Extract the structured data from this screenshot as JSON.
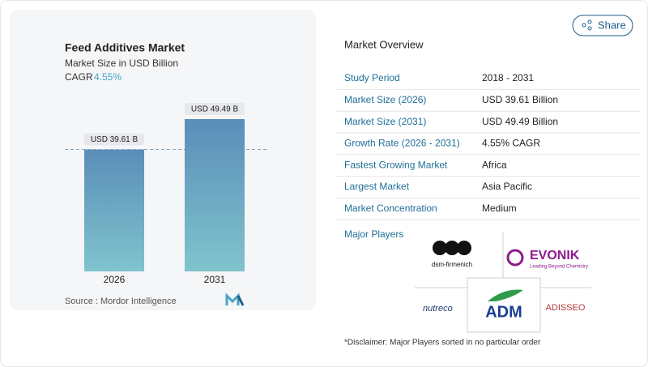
{
  "chart_data": {
    "type": "bar",
    "title": "Feed Additives Market",
    "subtitle": "Market Size in USD Billion",
    "cagr_label": "CAGR",
    "cagr_value": "4.55%",
    "categories": [
      "2026",
      "2031"
    ],
    "values": [
      39.61,
      49.49
    ],
    "value_labels": [
      "USD 39.61 B",
      "USD 49.49 B"
    ],
    "source": "Source : Mordor Intelligence"
  },
  "share": "Share",
  "overview": {
    "title": "Market Overview",
    "rows": [
      [
        "Study Period",
        "2018 - 2031"
      ],
      [
        "Market Size (2026)",
        "USD 39.61 Billion"
      ],
      [
        "Market Size (2031)",
        "USD 49.49 Billion"
      ],
      [
        "Growth Rate (2026 - 2031)",
        "4.55% CAGR"
      ],
      [
        "Fastest Growing Market",
        "Africa"
      ],
      [
        "Largest Market",
        "Asia Pacific"
      ],
      [
        "Market Concentration",
        "Medium"
      ]
    ]
  },
  "players": {
    "title": "Major Players",
    "logos": [
      "dsm-firmenich",
      "EVONIK",
      "Leading Beyond Chemistry",
      "nutreco",
      "ADM",
      "ADISSEO"
    ]
  },
  "disclaimer": "*Disclaimer: Major Players sorted in no particular order"
}
